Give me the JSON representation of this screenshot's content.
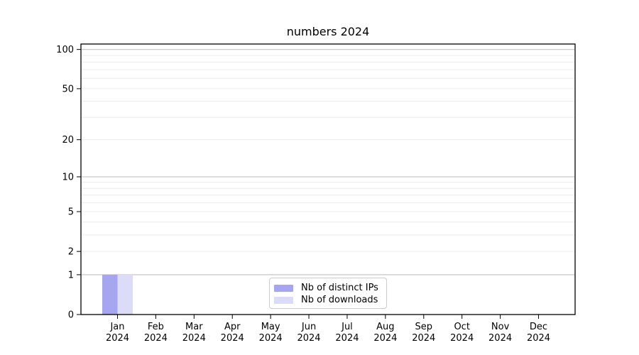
{
  "title": "numbers 2024",
  "chart_data": {
    "type": "bar",
    "title": "numbers 2024",
    "xlabel": "",
    "ylabel": "",
    "yscale": "log1p",
    "ylim": [
      0,
      110
    ],
    "grid": true,
    "legend_position": "lower center",
    "categories": [
      {
        "month": "Jan",
        "year": "2024"
      },
      {
        "month": "Feb",
        "year": "2024"
      },
      {
        "month": "Mar",
        "year": "2024"
      },
      {
        "month": "Apr",
        "year": "2024"
      },
      {
        "month": "May",
        "year": "2024"
      },
      {
        "month": "Jun",
        "year": "2024"
      },
      {
        "month": "Jul",
        "year": "2024"
      },
      {
        "month": "Aug",
        "year": "2024"
      },
      {
        "month": "Sep",
        "year": "2024"
      },
      {
        "month": "Oct",
        "year": "2024"
      },
      {
        "month": "Nov",
        "year": "2024"
      },
      {
        "month": "Dec",
        "year": "2024"
      }
    ],
    "series": [
      {
        "name": "Nb of distinct IPs",
        "color": "#a5a5f0",
        "values": [
          1,
          0,
          0,
          0,
          0,
          0,
          0,
          0,
          0,
          0,
          0,
          0
        ]
      },
      {
        "name": "Nb of downloads",
        "color": "#dcdcf8",
        "values": [
          1,
          0,
          0,
          0,
          0,
          0,
          0,
          0,
          0,
          0,
          0,
          0
        ]
      }
    ],
    "y_major_ticks": [
      0,
      1,
      2,
      5,
      10,
      20,
      50,
      100
    ],
    "y_emphasized_gridlines": [
      1,
      10,
      100
    ],
    "y_minor_gridlines": [
      3,
      4,
      6,
      7,
      8,
      9,
      30,
      40,
      60,
      70,
      80,
      90
    ]
  },
  "colors": {
    "spine": "#000000",
    "tick_text": "#000000",
    "grid_minor": "#ececec",
    "grid_major": "#cccccc",
    "legend_border": "#cccccc"
  }
}
